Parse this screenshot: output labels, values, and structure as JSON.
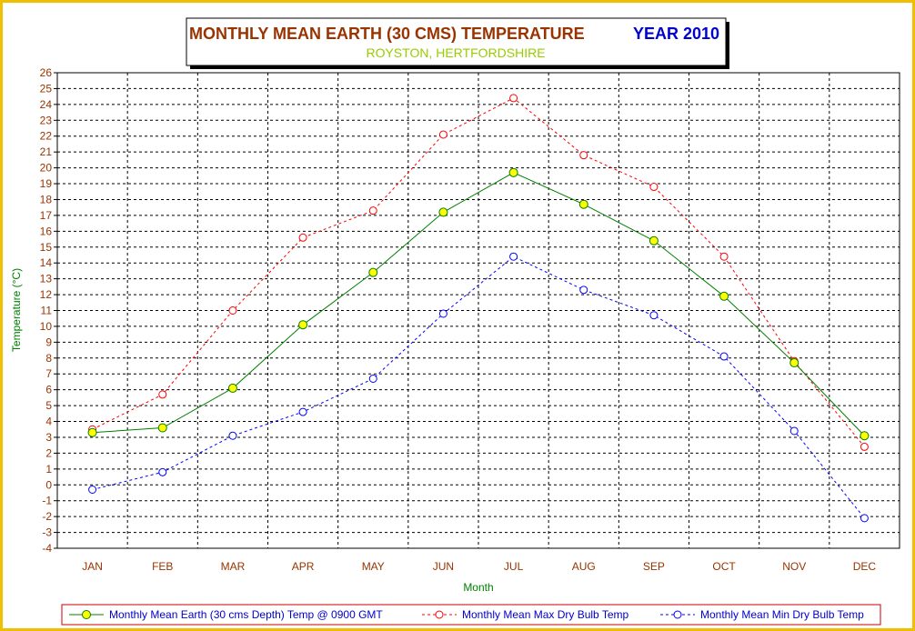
{
  "title": {
    "main": "MONTHLY MEAN  EARTH (30 CMS) TEMPERATURE",
    "year": "YEAR 2010",
    "subtitle": "ROYSTON, HERTFORDSHIRE"
  },
  "colors": {
    "border": "#f0c000",
    "title_main": "#993300",
    "title_year": "#0000cc",
    "subtitle": "#99cc00",
    "axis_title": "#008000",
    "tick_labels": "#993300",
    "legend_text": "#0000cc",
    "legend_border": "#cc0000",
    "earth": "#008000",
    "earth_marker": "#ffff00",
    "max": "#ff0000",
    "min": "#0000ff"
  },
  "chart_data": {
    "type": "line",
    "title": "MONTHLY MEAN  EARTH (30 CMS) TEMPERATURE",
    "subtitle": "ROYSTON, HERTFORDSHIRE",
    "xlabel": "Month",
    "ylabel": "Temperature (°C)",
    "ylim": [
      -4,
      26
    ],
    "yticks": [
      "26",
      "25",
      "24",
      "23",
      "22",
      "21",
      "20",
      "19",
      "18",
      "17",
      "16",
      "15",
      "14",
      "13",
      "12",
      "11",
      "10",
      "9",
      "8",
      "7",
      "6",
      "5",
      "4",
      "3",
      "2",
      "1",
      "0",
      "-1",
      "-2",
      "-3",
      "-4"
    ],
    "categories": [
      "JAN",
      "FEB",
      "MAR",
      "APR",
      "MAY",
      "JUN",
      "JUL",
      "AUG",
      "SEP",
      "OCT",
      "NOV",
      "DEC"
    ],
    "grid": true,
    "legend_position": "bottom",
    "series": [
      {
        "name": "Monthly Mean Earth (30 cms Depth) Temp @ 0900 GMT",
        "style": "solid",
        "values": [
          3.3,
          3.6,
          6.1,
          10.1,
          13.4,
          17.2,
          19.7,
          17.7,
          15.4,
          11.9,
          7.7,
          3.1
        ]
      },
      {
        "name": "Monthly Mean Max Dry Bulb Temp",
        "style": "dashed",
        "values": [
          3.5,
          5.7,
          11.0,
          15.6,
          17.3,
          22.1,
          24.4,
          20.8,
          18.8,
          14.4,
          7.8,
          2.4
        ]
      },
      {
        "name": "Monthly Mean Min Dry Bulb Temp",
        "style": "dashed",
        "values": [
          -0.3,
          0.8,
          3.1,
          4.6,
          6.7,
          10.8,
          14.4,
          12.3,
          10.7,
          8.1,
          3.4,
          -2.1
        ]
      }
    ]
  }
}
